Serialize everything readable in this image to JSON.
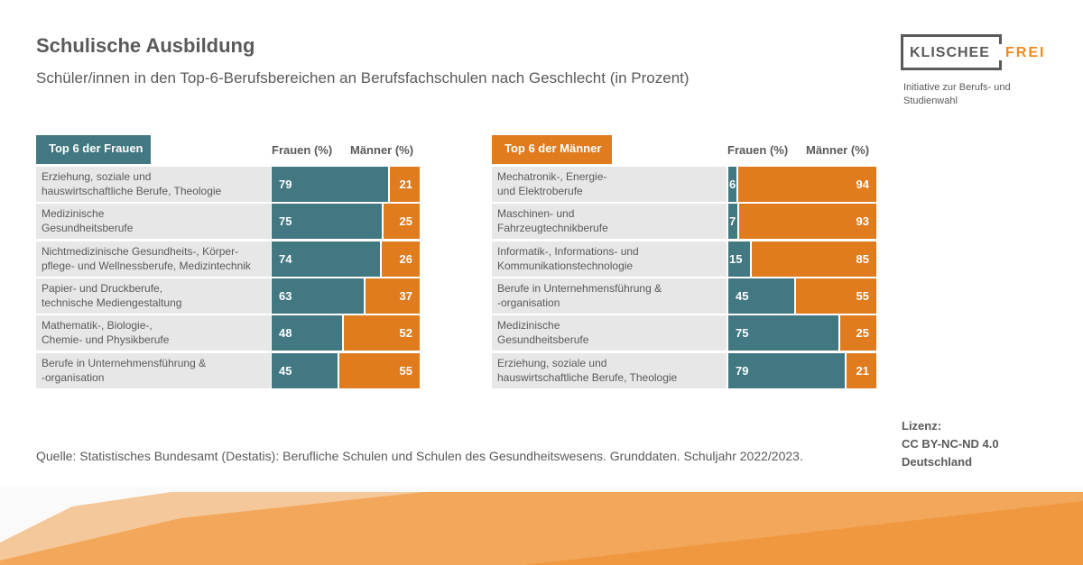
{
  "title": "Schulische Ausbildung",
  "subtitle": "Schüler/innen in den Top-6-Berufsbereichen an Berufsfachschulen nach Geschlecht (in Prozent)",
  "logo": {
    "main": "KLISCHEE",
    "accent": "FREI",
    "tagline": "Initiative zur Berufs- und Studienwahl"
  },
  "colors": {
    "frauen": "#427882",
    "maenner": "#e07b1e"
  },
  "chart_data": [
    {
      "type": "bar",
      "stacked": true,
      "orientation": "horizontal",
      "title": "Top 6 der Frauen",
      "column_headers": [
        "Frauen (%)",
        "Männer (%)"
      ],
      "categories": [
        "Erziehung, soziale und\nhauswirtschaftliche Berufe, Theologie",
        "Medizinische\nGesundheitsberufe",
        "Nichtmedizinische Gesundheits-, Körper-\npflege- und Wellnessberufe, Medizintechnik",
        "Papier- und Druckberufe,\ntechnische Mediengestaltung",
        "Mathematik-, Biologie-,\nChemie- und Physikberufe",
        "Berufe in Unternehmensführung &\n-organisation"
      ],
      "series": [
        {
          "name": "Frauen (%)",
          "values": [
            79,
            75,
            74,
            63,
            48,
            45
          ]
        },
        {
          "name": "Männer (%)",
          "values": [
            21,
            25,
            26,
            37,
            52,
            55
          ]
        }
      ],
      "xlim": [
        0,
        100
      ]
    },
    {
      "type": "bar",
      "stacked": true,
      "orientation": "horizontal",
      "title": "Top 6 der Männer",
      "column_headers": [
        "Frauen (%)",
        "Männer (%)"
      ],
      "categories": [
        "Mechatronik-, Energie-\nund Elektroberufe",
        "Maschinen- und\nFahrzeugtechnikberufe",
        "Informatik-, Informations- und\nKommunikationstechnologie",
        "Berufe in Unternehmensführung &\n-organisation",
        "Medizinische\nGesundheitsberufe",
        "Erziehung, soziale und\nhauswirtschaftliche Berufe, Theologie"
      ],
      "series": [
        {
          "name": "Frauen (%)",
          "values": [
            6,
            7,
            15,
            45,
            75,
            79
          ]
        },
        {
          "name": "Männer (%)",
          "values": [
            94,
            93,
            85,
            55,
            25,
            21
          ]
        }
      ],
      "xlim": [
        0,
        100
      ]
    }
  ],
  "source": "Quelle: Statistisches Bundesamt (Destatis): Berufliche Schulen und Schulen des Gesundheitswesens. Grunddaten. Schuljahr 2022/2023.",
  "license": {
    "label": "Lizenz:",
    "line1": "CC BY-NC-ND 4.0",
    "line2": "Deutschland"
  }
}
